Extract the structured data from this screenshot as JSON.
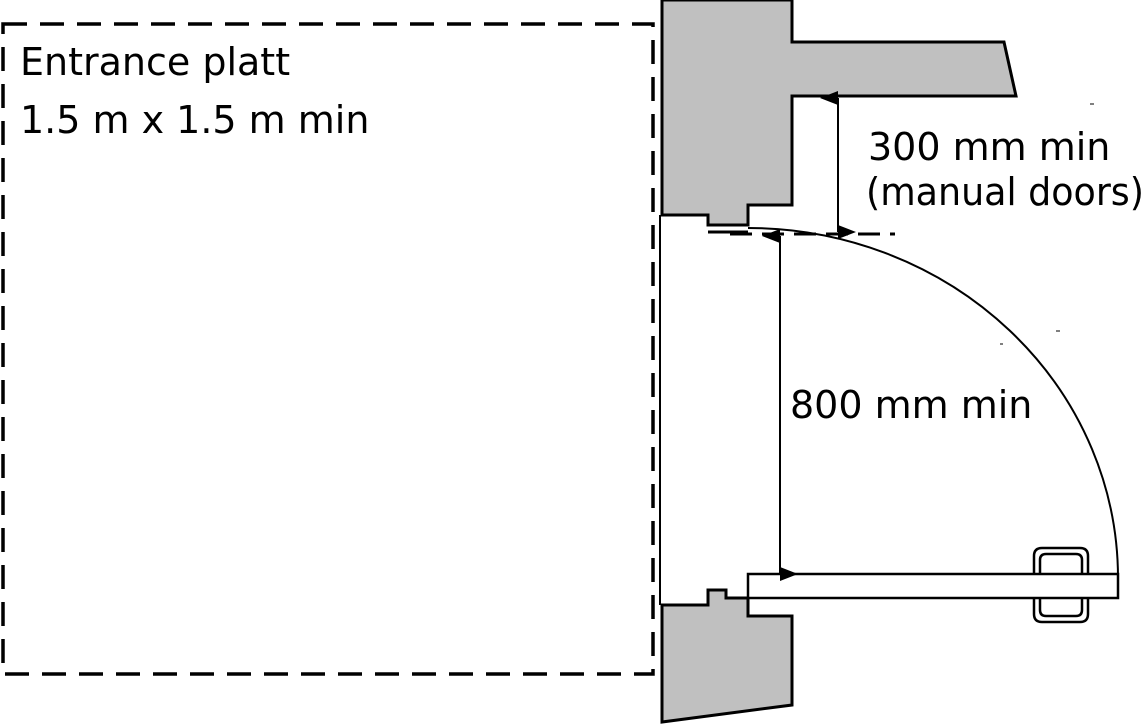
{
  "platform": {
    "line1": "Entrance platt",
    "line2": "1.5 m x 1.5 m min"
  },
  "dimensions": {
    "top_line1": "300 mm min",
    "top_line2": "(manual doors)",
    "opening": "800 mm min"
  },
  "colors": {
    "wall": "#c0c0c0",
    "stroke": "#000000",
    "background": "#ffffff"
  }
}
